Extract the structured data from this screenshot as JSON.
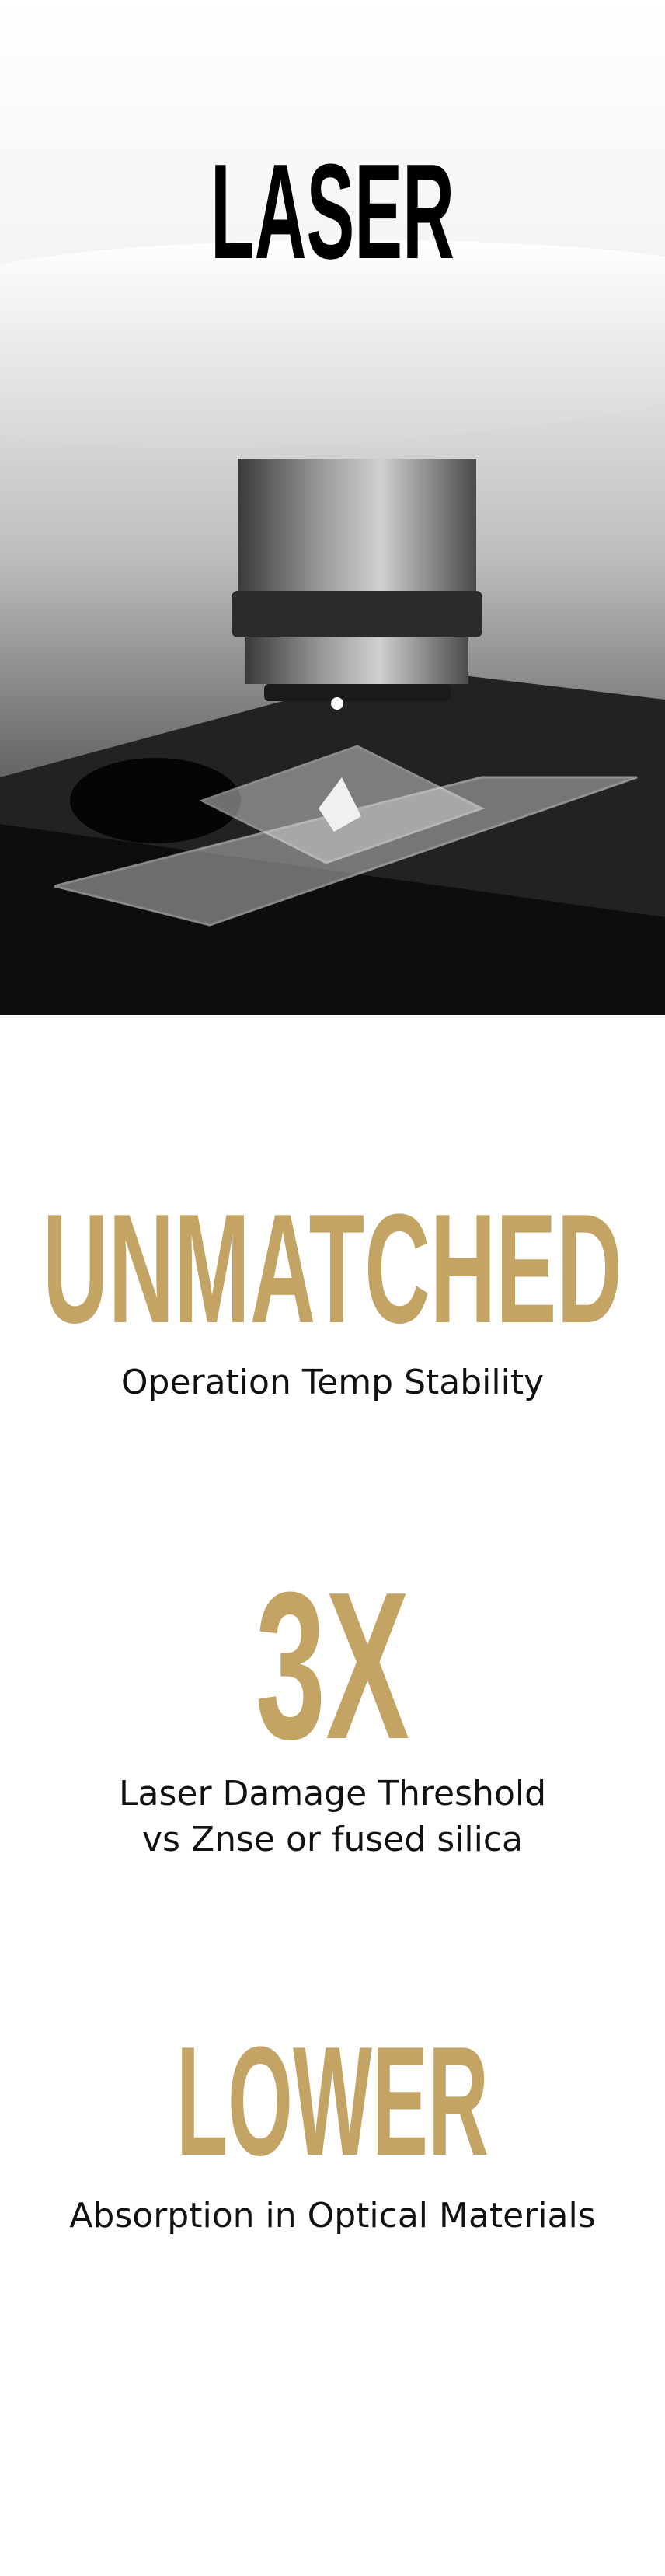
{
  "hero": {
    "title": "LASER"
  },
  "stats": [
    {
      "value": "UNMATCHED",
      "lines": [
        "Operation Temp Stability"
      ]
    },
    {
      "value": "3X",
      "lines": [
        "Laser Damage Threshold",
        "vs Znse or fused silica"
      ]
    },
    {
      "value": "LOWER",
      "lines": [
        "Absorption in Optical Materials"
      ]
    }
  ]
}
